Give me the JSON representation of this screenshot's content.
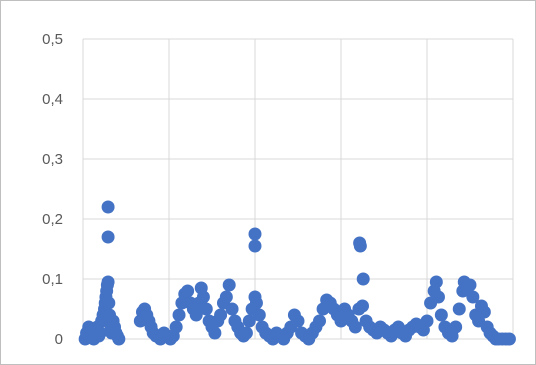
{
  "chart_data": {
    "type": "scatter",
    "title": "",
    "xlabel": "",
    "ylabel": "",
    "ylim": [
      0,
      0.5
    ],
    "y_ticks": [
      "0",
      "0,1",
      "0,2",
      "0,3",
      "0,4",
      "0,5"
    ],
    "x_ticks": [],
    "x_gridline_count": 5,
    "grid": true,
    "legend": "none",
    "marker_color": "#4472c4",
    "series": [
      {
        "values": [
          [
            0.3,
            0.0
          ],
          [
            0.5,
            0.01
          ],
          [
            0.8,
            0.02
          ],
          [
            1.0,
            0.005
          ],
          [
            1.2,
            0.015
          ],
          [
            1.5,
            0.0
          ],
          [
            1.8,
            0.01
          ],
          [
            2.0,
            0.02
          ],
          [
            2.2,
            0.005
          ],
          [
            2.4,
            0.01
          ],
          [
            2.6,
            0.03
          ],
          [
            2.8,
            0.04
          ],
          [
            3.0,
            0.05
          ],
          [
            3.1,
            0.06
          ],
          [
            3.2,
            0.07
          ],
          [
            3.3,
            0.08
          ],
          [
            3.4,
            0.09
          ],
          [
            3.5,
            0.095
          ],
          [
            3.6,
            0.06
          ],
          [
            3.7,
            0.04
          ],
          [
            3.8,
            0.03
          ],
          [
            3.9,
            0.02
          ],
          [
            4.0,
            0.01
          ],
          [
            4.2,
            0.03
          ],
          [
            4.4,
            0.02
          ],
          [
            4.6,
            0.01
          ],
          [
            4.8,
            0.005
          ],
          [
            5.0,
            0.0
          ],
          [
            3.5,
            0.22
          ],
          [
            3.5,
            0.17
          ],
          [
            8.0,
            0.03
          ],
          [
            8.3,
            0.045
          ],
          [
            8.6,
            0.05
          ],
          [
            8.9,
            0.04
          ],
          [
            9.2,
            0.03
          ],
          [
            9.5,
            0.02
          ],
          [
            9.8,
            0.01
          ],
          [
            10.2,
            0.005
          ],
          [
            10.8,
            0.0
          ],
          [
            11.3,
            0.01
          ],
          [
            11.8,
            0.005
          ],
          [
            12.2,
            0.0
          ],
          [
            12.6,
            0.005
          ],
          [
            13.0,
            0.02
          ],
          [
            13.4,
            0.04
          ],
          [
            13.8,
            0.06
          ],
          [
            14.2,
            0.075
          ],
          [
            14.6,
            0.08
          ],
          [
            15.0,
            0.06
          ],
          [
            15.4,
            0.05
          ],
          [
            15.8,
            0.04
          ],
          [
            16.2,
            0.06
          ],
          [
            16.5,
            0.085
          ],
          [
            16.8,
            0.07
          ],
          [
            17.2,
            0.05
          ],
          [
            17.6,
            0.03
          ],
          [
            18.0,
            0.02
          ],
          [
            18.4,
            0.01
          ],
          [
            18.8,
            0.03
          ],
          [
            19.2,
            0.04
          ],
          [
            19.6,
            0.06
          ],
          [
            20.0,
            0.07
          ],
          [
            20.4,
            0.09
          ],
          [
            20.8,
            0.05
          ],
          [
            21.2,
            0.03
          ],
          [
            21.6,
            0.02
          ],
          [
            22.0,
            0.01
          ],
          [
            22.4,
            0.005
          ],
          [
            22.8,
            0.01
          ],
          [
            23.2,
            0.03
          ],
          [
            23.6,
            0.05
          ],
          [
            24.0,
            0.07
          ],
          [
            24.2,
            0.06
          ],
          [
            24.0,
            0.175
          ],
          [
            24.0,
            0.155
          ],
          [
            24.6,
            0.04
          ],
          [
            25.0,
            0.02
          ],
          [
            25.5,
            0.01
          ],
          [
            26.0,
            0.005
          ],
          [
            26.5,
            0.0
          ],
          [
            27.0,
            0.01
          ],
          [
            27.5,
            0.005
          ],
          [
            28.0,
            0.0
          ],
          [
            28.5,
            0.01
          ],
          [
            29.0,
            0.02
          ],
          [
            29.5,
            0.04
          ],
          [
            30.0,
            0.03
          ],
          [
            30.5,
            0.01
          ],
          [
            31.0,
            0.005
          ],
          [
            31.5,
            0.0
          ],
          [
            32.0,
            0.01
          ],
          [
            32.5,
            0.02
          ],
          [
            33.0,
            0.03
          ],
          [
            33.5,
            0.05
          ],
          [
            34.0,
            0.065
          ],
          [
            34.5,
            0.06
          ],
          [
            35.0,
            0.05
          ],
          [
            35.5,
            0.04
          ],
          [
            36.0,
            0.03
          ],
          [
            36.5,
            0.05
          ],
          [
            37.0,
            0.04
          ],
          [
            37.5,
            0.03
          ],
          [
            38.0,
            0.02
          ],
          [
            38.5,
            0.05
          ],
          [
            39.0,
            0.055
          ],
          [
            39.5,
            0.03
          ],
          [
            38.6,
            0.16
          ],
          [
            38.7,
            0.155
          ],
          [
            39.1,
            0.1
          ],
          [
            40.0,
            0.02
          ],
          [
            40.5,
            0.015
          ],
          [
            41.0,
            0.01
          ],
          [
            41.5,
            0.02
          ],
          [
            42.0,
            0.015
          ],
          [
            42.5,
            0.01
          ],
          [
            43.0,
            0.005
          ],
          [
            43.5,
            0.015
          ],
          [
            44.0,
            0.02
          ],
          [
            44.5,
            0.01
          ],
          [
            45.0,
            0.005
          ],
          [
            45.5,
            0.015
          ],
          [
            46.0,
            0.02
          ],
          [
            46.5,
            0.025
          ],
          [
            47.0,
            0.02
          ],
          [
            47.5,
            0.015
          ],
          [
            48.0,
            0.03
          ],
          [
            48.5,
            0.06
          ],
          [
            49.0,
            0.08
          ],
          [
            49.3,
            0.095
          ],
          [
            49.6,
            0.07
          ],
          [
            50.0,
            0.04
          ],
          [
            50.5,
            0.02
          ],
          [
            51.0,
            0.01
          ],
          [
            51.5,
            0.005
          ],
          [
            52.0,
            0.02
          ],
          [
            52.5,
            0.05
          ],
          [
            53.0,
            0.08
          ],
          [
            53.2,
            0.095
          ],
          [
            53.6,
            0.085
          ],
          [
            54.0,
            0.09
          ],
          [
            54.4,
            0.07
          ],
          [
            54.8,
            0.04
          ],
          [
            55.2,
            0.03
          ],
          [
            55.6,
            0.055
          ],
          [
            56.0,
            0.045
          ],
          [
            56.4,
            0.02
          ],
          [
            56.8,
            0.01
          ],
          [
            57.2,
            0.005
          ],
          [
            57.6,
            0.0
          ],
          [
            58.0,
            0.0
          ],
          [
            58.5,
            0.0
          ],
          [
            59.0,
            0.0
          ],
          [
            59.5,
            0.0
          ]
        ]
      }
    ]
  }
}
